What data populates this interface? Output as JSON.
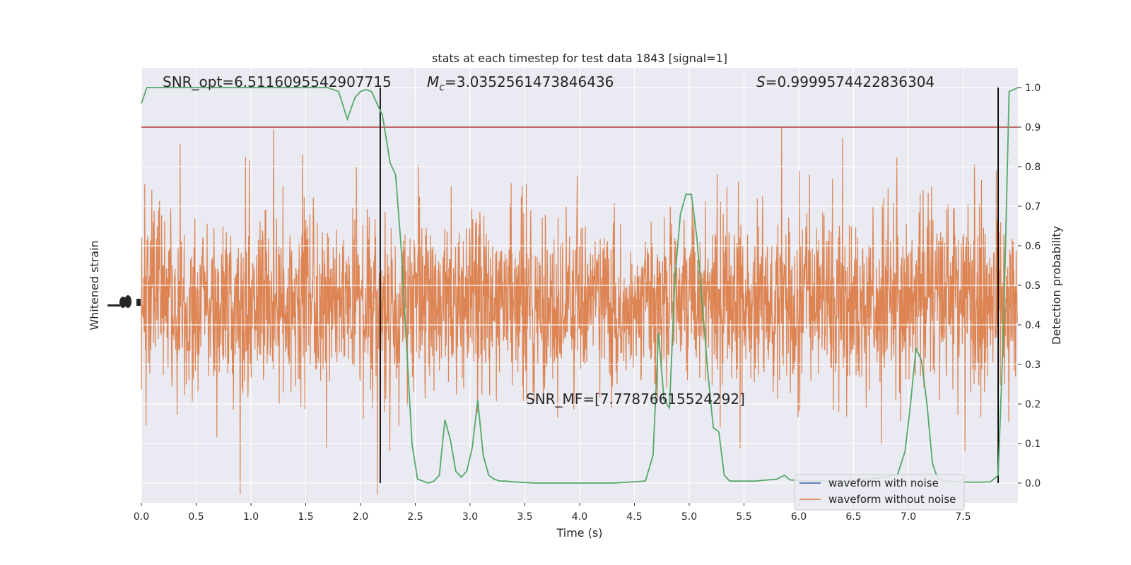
{
  "chart_data": {
    "type": "line",
    "title": "stats at each timestep for test data 1843 [signal=1]",
    "xlabel": "Time (s)",
    "ylabel_left": "Whitened strain",
    "ylabel_right": "Detection probability",
    "xlim": [
      0.0,
      8.0
    ],
    "ylim_right": [
      -0.05,
      1.05
    ],
    "x_ticks": [
      0.0,
      0.5,
      1.0,
      1.5,
      2.0,
      2.5,
      3.0,
      3.5,
      4.0,
      4.5,
      5.0,
      5.5,
      6.0,
      6.5,
      7.0,
      7.5
    ],
    "x_tick_labels": [
      "0.0",
      "0.5",
      "1.0",
      "1.5",
      "2.0",
      "2.5",
      "3.0",
      "3.5",
      "4.0",
      "4.5",
      "5.0",
      "5.5",
      "6.0",
      "6.5",
      "7.0",
      "7.5"
    ],
    "y_ticks_right": [
      0.0,
      0.1,
      0.2,
      0.3,
      0.4,
      0.5,
      0.6,
      0.7,
      0.8,
      0.9,
      1.0
    ],
    "y_tick_labels_right": [
      "0.0",
      "0.1",
      "0.2",
      "0.3",
      "0.4",
      "0.5",
      "0.6",
      "0.7",
      "0.8",
      "0.9",
      "1.0"
    ],
    "grid": true,
    "annotations": [
      {
        "text": "SNR_opt=6.5116095542907715"
      },
      {
        "text": "Mc=3.0352561473846436",
        "symbol": "M",
        "subscript": "c",
        "value": "=3.0352561473846436"
      },
      {
        "text": "S=0.9999574422836304",
        "symbol": "S",
        "value": "=0.9999574422836304"
      },
      {
        "text": "SNR_MF=[7.77876615524292]"
      }
    ],
    "threshold": {
      "y": 0.9,
      "color": "#b03a3a"
    },
    "vertical_lines": [
      2.18,
      7.82
    ],
    "legend": {
      "position": "lower-right",
      "entries": [
        {
          "label": "waveform with noise",
          "color": "#4c72b0"
        },
        {
          "label": "waveform without noise",
          "color": "#dd8452"
        }
      ]
    },
    "series": [
      {
        "color": "#55a868",
        "axis": "right",
        "x": [
          0.0,
          0.05,
          0.1,
          0.5,
          1.0,
          1.5,
          1.7,
          1.8,
          1.88,
          1.95,
          2.0,
          2.05,
          2.1,
          2.15,
          2.2,
          2.27,
          2.32,
          2.37,
          2.42,
          2.47,
          2.52,
          2.57,
          2.62,
          2.67,
          2.72,
          2.77,
          2.82,
          2.87,
          2.92,
          2.97,
          3.02,
          3.07,
          3.12,
          3.17,
          3.22,
          3.27,
          3.32,
          3.4,
          3.6,
          4.0,
          4.3,
          4.6,
          4.67,
          4.72,
          4.77,
          4.82,
          4.87,
          4.92,
          4.97,
          5.02,
          5.07,
          5.12,
          5.17,
          5.22,
          5.27,
          5.32,
          5.37,
          5.42,
          5.6,
          5.8,
          5.87,
          5.92,
          6.1,
          6.5,
          6.9,
          6.97,
          7.02,
          7.07,
          7.12,
          7.17,
          7.22,
          7.27,
          7.35,
          7.45,
          7.6,
          7.75,
          7.82,
          7.87,
          7.92,
          8.0
        ],
        "y": [
          0.96,
          1.0,
          1.0,
          1.0,
          1.0,
          1.0,
          1.0,
          0.99,
          0.92,
          0.975,
          0.99,
          0.995,
          0.99,
          0.96,
          0.93,
          0.81,
          0.78,
          0.6,
          0.35,
          0.1,
          0.01,
          0.005,
          0.0,
          0.005,
          0.02,
          0.16,
          0.11,
          0.03,
          0.015,
          0.03,
          0.09,
          0.21,
          0.07,
          0.02,
          0.01,
          0.005,
          0.005,
          0.003,
          0.0,
          0.0,
          0.0,
          0.005,
          0.07,
          0.38,
          0.21,
          0.19,
          0.52,
          0.68,
          0.73,
          0.73,
          0.62,
          0.45,
          0.28,
          0.14,
          0.13,
          0.02,
          0.005,
          0.005,
          0.005,
          0.01,
          0.02,
          0.008,
          0.005,
          0.005,
          0.02,
          0.08,
          0.2,
          0.34,
          0.31,
          0.2,
          0.05,
          0.01,
          0.005,
          0.003,
          0.002,
          0.003,
          0.02,
          0.4,
          0.99,
          1.0
        ]
      }
    ]
  }
}
